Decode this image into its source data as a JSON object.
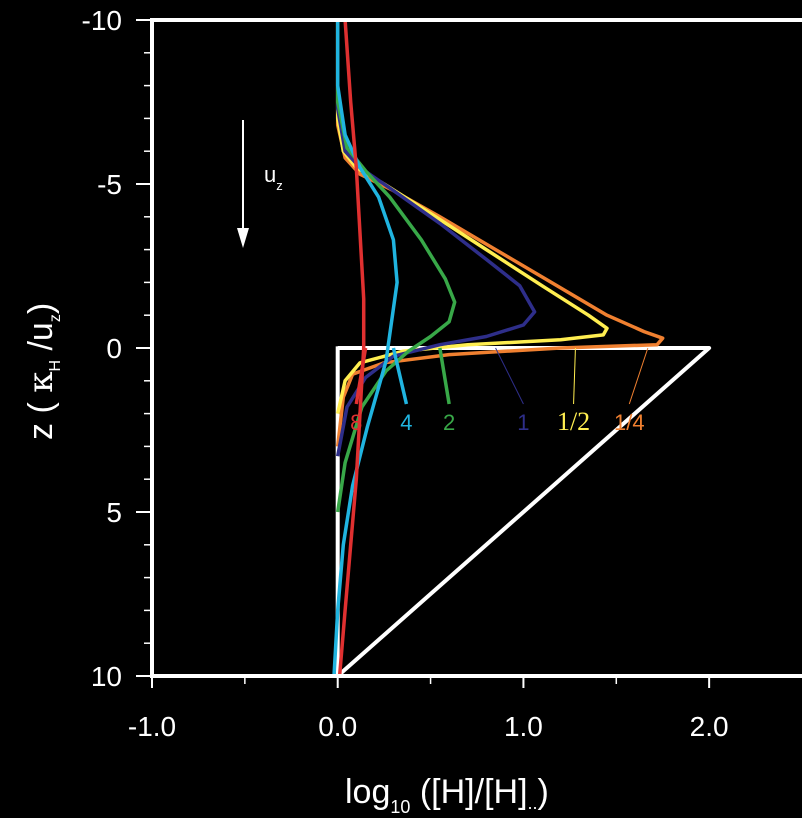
{
  "chart_data": {
    "type": "line",
    "xlabel": {
      "main": "log",
      "sub": "10",
      "rest": " ([H]/[H]",
      "sub2": "..",
      "end": ")"
    },
    "ylabel": {
      "main": "z ( ",
      "kappa": "κ",
      "ksub": "H",
      "mid": " /u",
      "usub": "z",
      "end": ")"
    },
    "xlim": [
      -1.0,
      2.5
    ],
    "ylim": [
      10,
      -10
    ],
    "xticks": [
      {
        "value": -1.0,
        "label": "-1.0"
      },
      {
        "value": 0.0,
        "label": "0.0"
      },
      {
        "value": 1.0,
        "label": "1.0"
      },
      {
        "value": 2.0,
        "label": "2.0"
      }
    ],
    "yticks": [
      {
        "value": -10,
        "label": "-10"
      },
      {
        "value": -5,
        "label": "-5"
      },
      {
        "value": 0,
        "label": "0"
      },
      {
        "value": 5,
        "label": "5"
      },
      {
        "value": 10,
        "label": "10"
      }
    ],
    "arrow_label": {
      "main": "u",
      "sub": "z"
    },
    "series": [
      {
        "name": "0",
        "color": "#ffffff",
        "label_at": null,
        "points": [
          [
            0.0,
            -0.05
          ],
          [
            0.0,
            10
          ],
          [
            2.0,
            0
          ],
          [
            0.0,
            0
          ]
        ]
      },
      {
        "name": "1/4",
        "color": "#f08030",
        "label_at": [
          1.57,
          2.5
        ],
        "leader_from": [
          1.67,
          0.0
        ],
        "points": [
          [
            0.0,
            -10
          ],
          [
            0.0,
            -6.8
          ],
          [
            0.04,
            -5.8
          ],
          [
            0.12,
            -5.3
          ],
          [
            0.3,
            -4.8
          ],
          [
            0.55,
            -4.0
          ],
          [
            0.85,
            -3.0
          ],
          [
            1.15,
            -2.0
          ],
          [
            1.45,
            -1.0
          ],
          [
            1.65,
            -0.5
          ],
          [
            1.75,
            -0.3
          ],
          [
            1.72,
            -0.1
          ],
          [
            1.2,
            0.0
          ],
          [
            0.6,
            0.2
          ],
          [
            0.25,
            0.45
          ],
          [
            0.08,
            0.8
          ],
          [
            0.03,
            1.5
          ],
          [
            0.0,
            3.0
          ]
        ]
      },
      {
        "name": "1/2",
        "color": "#ffee50",
        "label_at": [
          1.27,
          2.5
        ],
        "leader_from": [
          1.28,
          0.0
        ],
        "points": [
          [
            0.0,
            -10
          ],
          [
            0.0,
            -7
          ],
          [
            0.03,
            -6
          ],
          [
            0.1,
            -5.5
          ],
          [
            0.25,
            -5.0
          ],
          [
            0.5,
            -4.1
          ],
          [
            0.8,
            -3.0
          ],
          [
            1.1,
            -1.9
          ],
          [
            1.35,
            -1.0
          ],
          [
            1.45,
            -0.6
          ],
          [
            1.43,
            -0.4
          ],
          [
            1.2,
            -0.25
          ],
          [
            0.7,
            -0.1
          ],
          [
            0.35,
            0.1
          ],
          [
            0.12,
            0.45
          ],
          [
            0.04,
            1.0
          ],
          [
            0.0,
            2.0
          ]
        ]
      },
      {
        "name": "1",
        "color": "#2e2e8a",
        "label_at": [
          1.0,
          2.5
        ],
        "leader_from": [
          0.85,
          0.0
        ],
        "points": [
          [
            0.0,
            -10
          ],
          [
            0.0,
            -7.3
          ],
          [
            0.04,
            -6
          ],
          [
            0.12,
            -5.5
          ],
          [
            0.3,
            -4.8
          ],
          [
            0.55,
            -3.8
          ],
          [
            0.8,
            -2.7
          ],
          [
            0.98,
            -1.9
          ],
          [
            1.06,
            -1.1
          ],
          [
            1.0,
            -0.7
          ],
          [
            0.8,
            -0.35
          ],
          [
            0.55,
            -0.1
          ],
          [
            0.3,
            0.25
          ],
          [
            0.15,
            0.9
          ],
          [
            0.05,
            1.8
          ],
          [
            0.0,
            3.3
          ]
        ]
      },
      {
        "name": "2",
        "color": "#38a848",
        "label_at": [
          0.6,
          2.5
        ],
        "leader_from": [
          0.55,
          0.0
        ],
        "points": [
          [
            0.0,
            -10
          ],
          [
            0.0,
            -7.5
          ],
          [
            0.05,
            -6.1
          ],
          [
            0.15,
            -5.4
          ],
          [
            0.28,
            -4.6
          ],
          [
            0.45,
            -3.3
          ],
          [
            0.58,
            -2.1
          ],
          [
            0.63,
            -1.4
          ],
          [
            0.6,
            -0.8
          ],
          [
            0.5,
            -0.35
          ],
          [
            0.38,
            0.1
          ],
          [
            0.26,
            0.7
          ],
          [
            0.13,
            1.8
          ],
          [
            0.04,
            3.5
          ],
          [
            0.0,
            5.0
          ]
        ]
      },
      {
        "name": "4",
        "color": "#20b4e0",
        "label_at": [
          0.37,
          2.5
        ],
        "leader_from": [
          0.3,
          0.0
        ],
        "points": [
          [
            0.0,
            -10
          ],
          [
            0.0,
            -8
          ],
          [
            0.04,
            -6.5
          ],
          [
            0.12,
            -5.5
          ],
          [
            0.22,
            -4.6
          ],
          [
            0.3,
            -3.3
          ],
          [
            0.32,
            -2.0
          ],
          [
            0.3,
            -1.2
          ],
          [
            0.28,
            -0.4
          ],
          [
            0.26,
            0.4
          ],
          [
            0.22,
            1.2
          ],
          [
            0.16,
            2.4
          ],
          [
            0.08,
            4.2
          ],
          [
            0.03,
            6.0
          ],
          [
            0.0,
            8.0
          ],
          [
            -0.02,
            10
          ]
        ]
      },
      {
        "name": "8",
        "color": "#e03030",
        "label_at": [
          0.1,
          2.5
        ],
        "leader_from": [
          0.15,
          0.0
        ],
        "points": [
          [
            0.04,
            -10
          ],
          [
            0.07,
            -7.5
          ],
          [
            0.1,
            -5.5
          ],
          [
            0.12,
            -3.5
          ],
          [
            0.14,
            -1.5
          ],
          [
            0.14,
            0.0
          ],
          [
            0.12,
            2.0
          ],
          [
            0.1,
            4.0
          ],
          [
            0.07,
            6.0
          ],
          [
            0.04,
            8.0
          ],
          [
            0.01,
            10
          ]
        ]
      }
    ]
  }
}
